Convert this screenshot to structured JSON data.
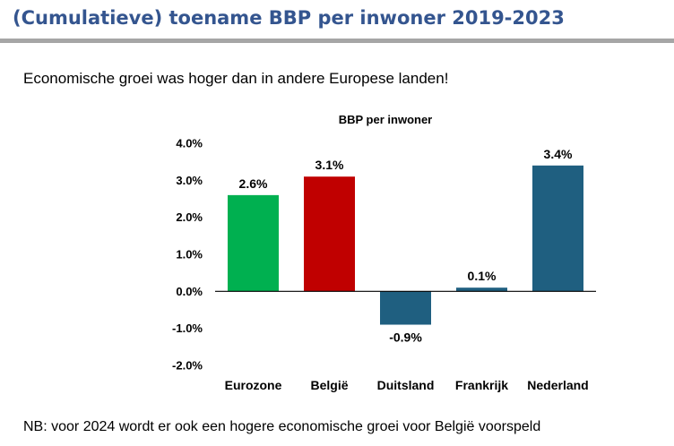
{
  "header": {
    "title": "(Cumulatieve) toename BBP per inwoner 2019-2023",
    "subtitle": "Economische groei was hoger dan in andere Europese landen!"
  },
  "footer": {
    "note": "NB: voor 2024 wordt er ook een hogere economische groei voor België voorspeld"
  },
  "chart_data": {
    "type": "bar",
    "title": "BBP per inwoner",
    "xlabel": "",
    "ylabel": "",
    "categories": [
      "Eurozone",
      "België",
      "Duitsland",
      "Frankrijk",
      "Nederland"
    ],
    "values": [
      2.6,
      3.1,
      -0.9,
      0.1,
      3.4
    ],
    "value_labels": [
      "2.6%",
      "3.1%",
      "-0.9%",
      "0.1%",
      "3.4%"
    ],
    "colors": [
      "#00b050",
      "#c00000",
      "#1f5f80",
      "#1f5f80",
      "#1f5f80"
    ],
    "ylim": [
      -2.0,
      4.0
    ],
    "yticks": [
      4.0,
      3.0,
      2.0,
      1.0,
      0.0,
      -1.0,
      -2.0
    ],
    "ytick_labels": [
      "4.0%",
      "3.0%",
      "2.0%",
      "1.0%",
      "0.0%",
      "-1.0%",
      "-2.0%"
    ],
    "grid": false,
    "legend": "none"
  }
}
